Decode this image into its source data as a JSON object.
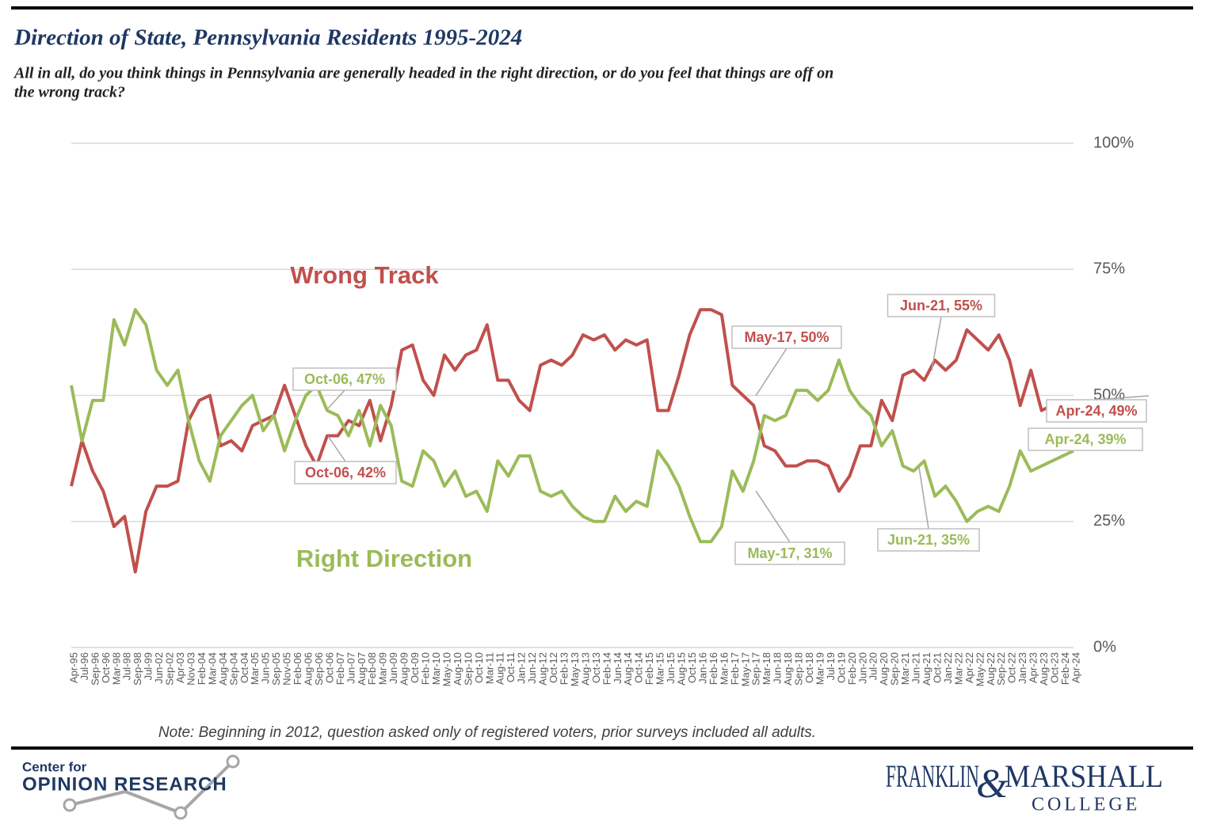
{
  "chart_data": {
    "type": "line",
    "title": "Direction of State, Pennsylvania Residents 1995-2024",
    "subtitle": [
      "All in all, do you think things in Pennsylvania are generally headed in the right direction, or do you feel that things are off on",
      "the wrong track?"
    ],
    "note": "Note: Beginning in 2012, question asked only of registered voters, prior surveys included all adults.",
    "categories": [
      "Apr-95",
      "Jul-96",
      "Sep-96",
      "Oct-96",
      "Mar-98",
      "Jul-98",
      "Sep-98",
      "Jul-99",
      "Jun-02",
      "Sep-02",
      "Apr-03",
      "Nov-03",
      "Feb-04",
      "Mar-04",
      "Aug-04",
      "Sep-04",
      "Oct-04",
      "Mar-05",
      "Jun-05",
      "Sep-05",
      "Nov-05",
      "Feb-06",
      "Aug-06",
      "Sep-06",
      "Oct-06",
      "Feb-07",
      "Jun-07",
      "Aug-07",
      "Feb-08",
      "Mar-09",
      "Jun-09",
      "Aug-09",
      "Oct-09",
      "Feb-10",
      "Mar-10",
      "May-10",
      "Aug-10",
      "Sep-10",
      "Oct-10",
      "Mar-11",
      "Aug-11",
      "Oct-11",
      "Jan-12",
      "Jun-12",
      "Aug-12",
      "Oct-12",
      "Feb-13",
      "May-13",
      "Aug-13",
      "Oct-13",
      "Feb-14",
      "Jun-14",
      "Aug-14",
      "Oct-14",
      "Feb-15",
      "Mar-15",
      "Jun-15",
      "Aug-15",
      "Oct-15",
      "Jan-16",
      "Feb-16",
      "Mar-16",
      "Feb-17",
      "May-17",
      "Sep-17",
      "Mar-18",
      "Jun-18",
      "Aug-18",
      "Sep-18",
      "Oct-18",
      "Mar-19",
      "Jul-19",
      "Oct-19",
      "Feb-20",
      "Jun-20",
      "Jul-20",
      "Aug-20",
      "Sep-20",
      "Mar-21",
      "Jun-21",
      "Aug-21",
      "Oct-21",
      "Jan-22",
      "Mar-22",
      "Apr-22",
      "May-22",
      "Aug-22",
      "Sep-22",
      "Oct-22",
      "Jan-23",
      "Apr-23",
      "Aug-23",
      "Oct-23",
      "Feb-24",
      "Apr-24"
    ],
    "series": [
      {
        "name": "Wrong Track",
        "color": "#c0504d",
        "values": [
          32,
          41,
          35,
          31,
          24,
          26,
          15,
          27,
          32,
          32,
          33,
          45,
          49,
          50,
          40,
          41,
          39,
          44,
          45,
          46,
          52,
          46,
          40,
          36,
          42,
          42,
          45,
          44,
          49,
          41,
          48,
          59,
          60,
          53,
          50,
          58,
          55,
          58,
          59,
          64,
          53,
          53,
          49,
          47,
          56,
          57,
          56,
          58,
          62,
          61,
          62,
          59,
          61,
          60,
          61,
          47,
          47,
          54,
          62,
          67,
          67,
          66,
          52,
          50,
          48,
          40,
          39,
          36,
          36,
          37,
          37,
          36,
          31,
          34,
          40,
          40,
          49,
          45,
          54,
          55,
          53,
          57,
          55,
          57,
          63,
          61,
          59,
          62,
          57,
          48,
          55,
          47,
          48,
          48,
          49
        ]
      },
      {
        "name": "Right Direction",
        "color": "#9bbb59",
        "values": [
          52,
          41,
          49,
          49,
          65,
          60,
          67,
          64,
          55,
          52,
          55,
          45,
          37,
          33,
          42,
          45,
          48,
          50,
          43,
          46,
          39,
          45,
          50,
          52,
          47,
          46,
          42,
          47,
          40,
          48,
          44,
          33,
          32,
          39,
          37,
          32,
          35,
          30,
          31,
          27,
          37,
          34,
          38,
          38,
          31,
          30,
          31,
          28,
          26,
          25,
          25,
          30,
          27,
          29,
          28,
          39,
          36,
          32,
          26,
          21,
          21,
          24,
          35,
          31,
          37,
          46,
          45,
          46,
          51,
          51,
          49,
          51,
          57,
          51,
          48,
          46,
          40,
          43,
          36,
          35,
          37,
          30,
          32,
          29,
          25,
          27,
          28,
          27,
          32,
          39,
          35,
          36,
          37,
          38,
          39
        ]
      }
    ],
    "annotations": [
      "Oct-06, 47%",
      "Oct-06, 42%",
      "May-17, 50%",
      "May-17, 31%",
      "Jun-21, 55%",
      "Jun-21, 35%",
      "Apr-24, 49%",
      "Apr-24, 39%"
    ],
    "ylim": [
      0,
      100
    ],
    "yticks": [
      {
        "value": 0,
        "label": "0%"
      },
      {
        "value": 25,
        "label": "25%"
      },
      {
        "value": 50,
        "label": "50%"
      },
      {
        "value": 75,
        "label": "75%"
      },
      {
        "value": 100,
        "label": "100%"
      }
    ],
    "grid": true
  },
  "footer": {
    "left": [
      "Center for",
      "OPINION RESEARCH"
    ],
    "right": [
      "FRANKLIN",
      "&",
      "MARSHALL",
      "COLLEGE"
    ]
  }
}
